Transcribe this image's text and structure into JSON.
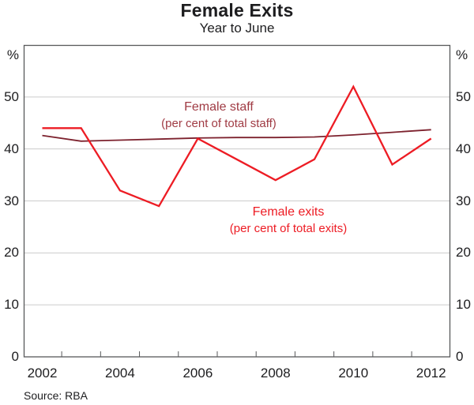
{
  "page": {
    "title": "Female Exits",
    "subtitle": "Year to June",
    "source": "Source: RBA"
  },
  "axis": {
    "unit": "%",
    "yticks": [
      50,
      40,
      30,
      20,
      10,
      0
    ],
    "xticks": [
      2002,
      2004,
      2006,
      2008,
      2010,
      2012
    ]
  },
  "colors": {
    "staff_line": "#7d222e",
    "staff_label": "#a03b44",
    "exits_line": "#ed1c24",
    "exits_label": "#ed1c24",
    "frame": "#58595b",
    "gridline": "#cccccc",
    "text": "#1d1d1f"
  },
  "chart_data": {
    "type": "line",
    "title": "Female Exits",
    "subtitle": "Year to June",
    "source": "Source: RBA",
    "grid": true,
    "ylim": [
      0,
      60
    ],
    "ytick_interval": 10,
    "ylabel_unit": "%",
    "x": [
      2002,
      2003,
      2004,
      2005,
      2006,
      2007,
      2008,
      2009,
      2010,
      2011,
      2012
    ],
    "x_axis_ticks_at_half_years": [
      2002.5,
      2003.5,
      2004.5,
      2005.5,
      2006.5,
      2007.5,
      2008.5,
      2009.5,
      2010.5,
      2011.5
    ],
    "series": [
      {
        "name": "Female staff",
        "label_line1": "Female staff",
        "label_line2": "(per cent of total staff)",
        "values": [
          42.6,
          41.5,
          41.7,
          41.9,
          42.1,
          42.2,
          42.2,
          42.3,
          42.7,
          43.2,
          43.7
        ]
      },
      {
        "name": "Female exits",
        "label_line1": "Female exits",
        "label_line2": "(per cent of total exits)",
        "values": [
          44,
          44,
          32,
          29,
          42,
          38,
          34,
          38,
          52,
          37,
          42
        ]
      }
    ]
  }
}
